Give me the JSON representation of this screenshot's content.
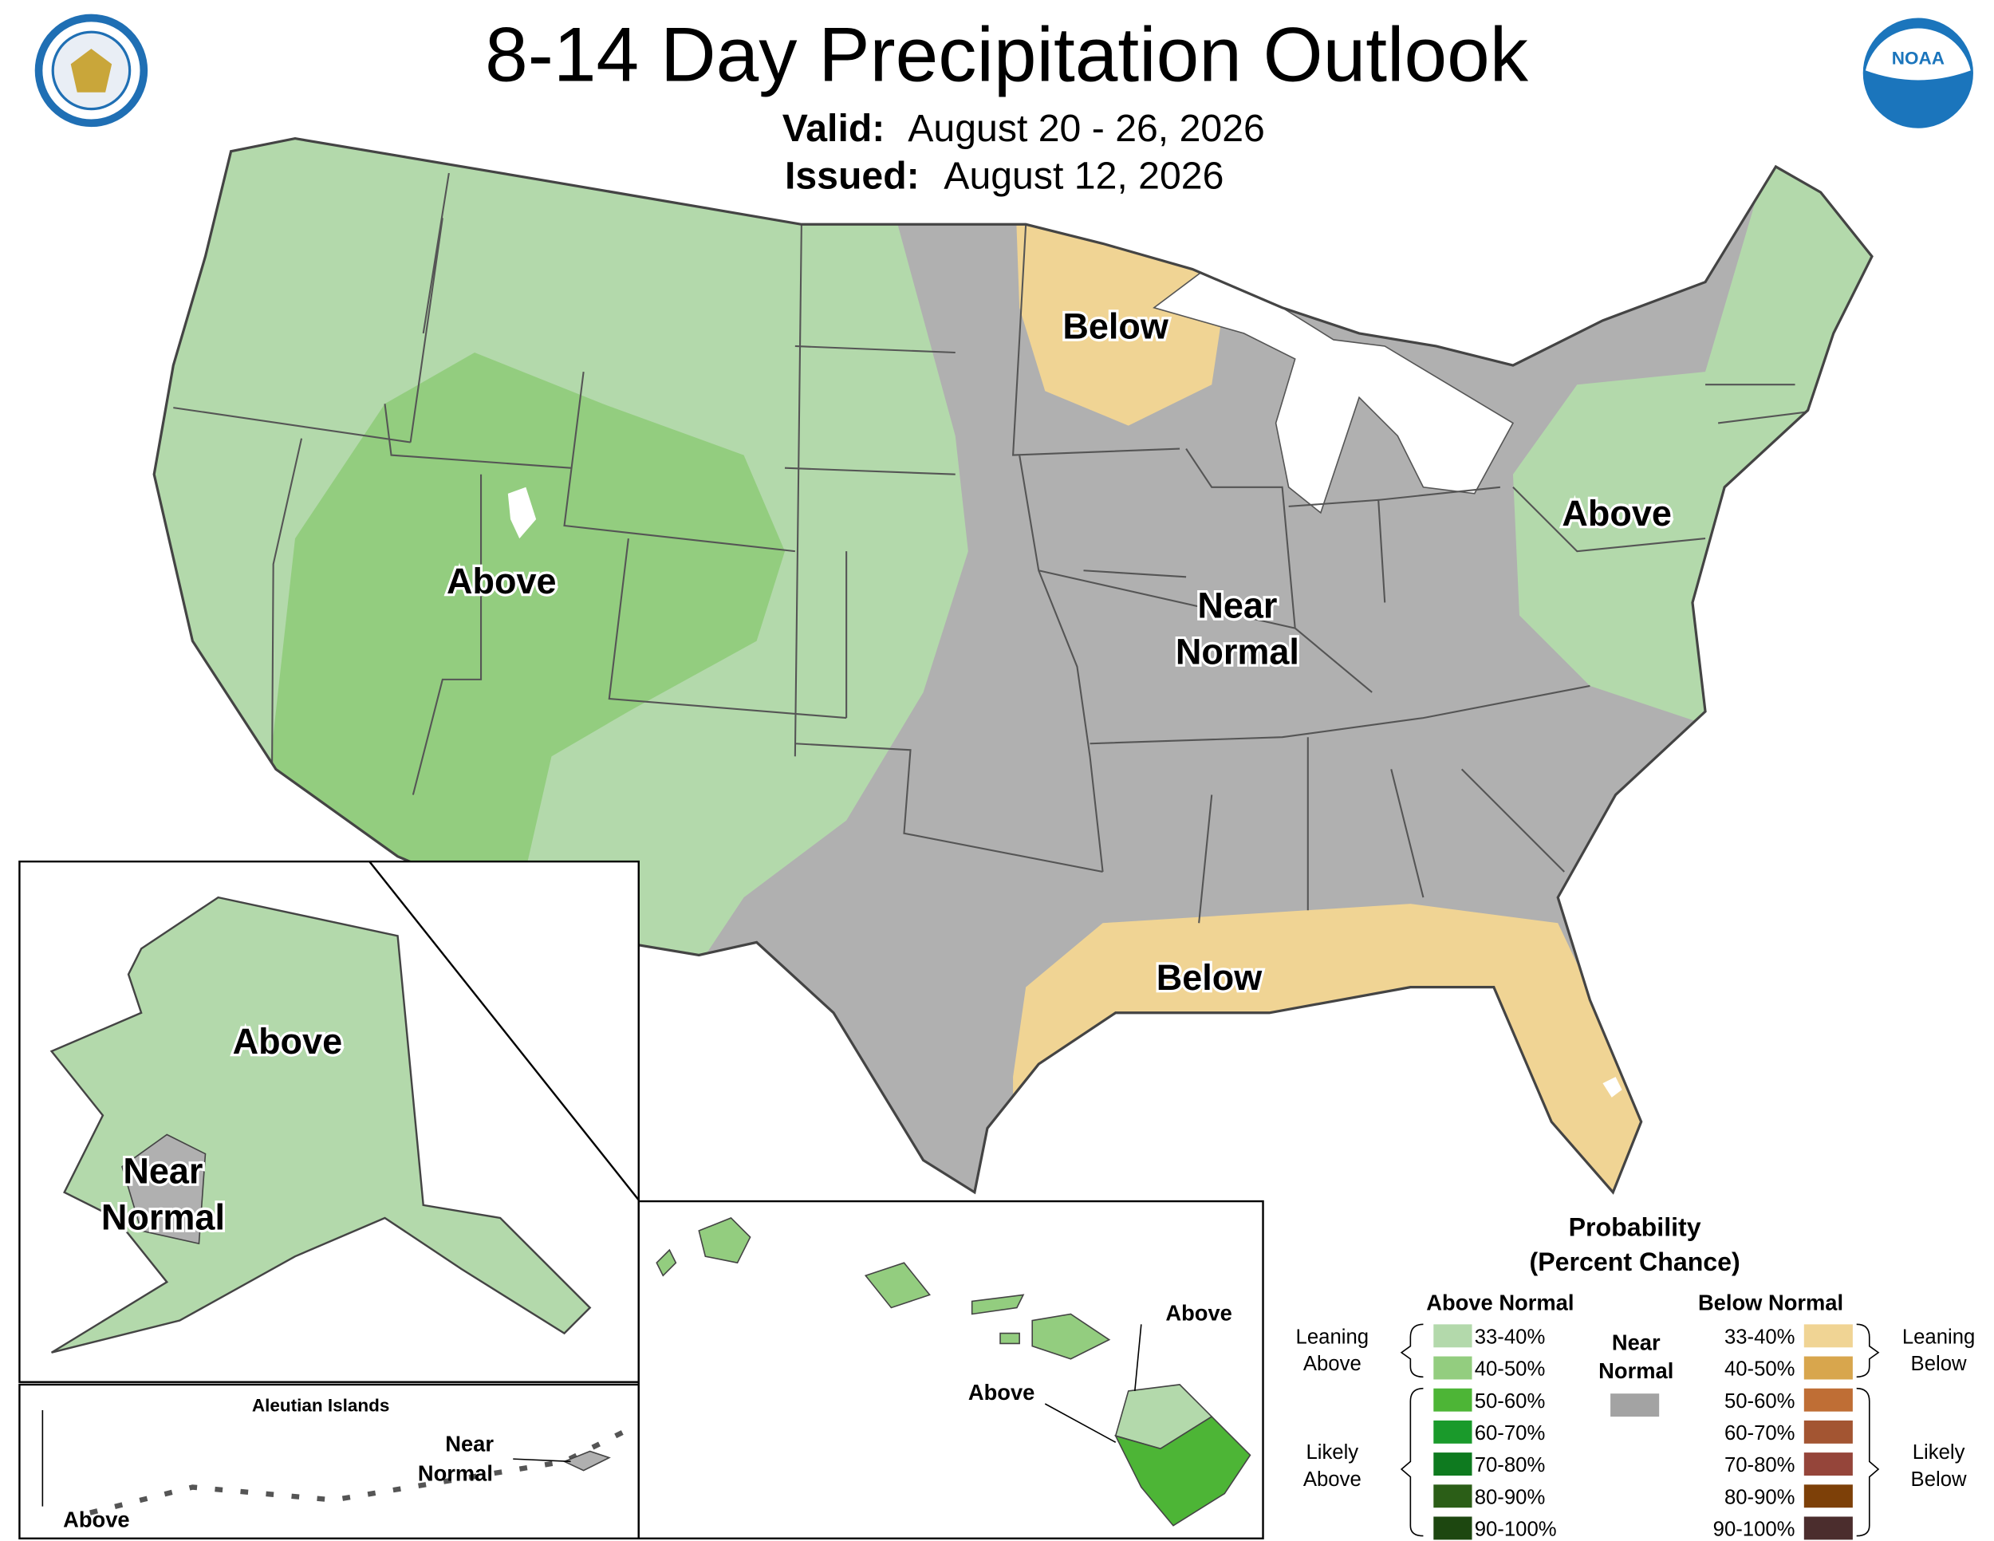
{
  "header": {
    "title": "8-14 Day Precipitation Outlook",
    "valid_label": "Valid:",
    "valid_dates": "August 20 - 26, 2026",
    "issued_label": "Issued:",
    "issued_date": "August 12, 2026"
  },
  "map_labels": {
    "conus": {
      "north_below": "Below",
      "west_above": "Above",
      "central_near": [
        "Near",
        "Normal"
      ],
      "east_above": "Above",
      "south_below": "Below"
    },
    "alaska": {
      "above": "Above",
      "near": [
        "Near",
        "Normal"
      ]
    },
    "aleutians": {
      "title": "Aleutian Islands",
      "near": [
        "Near",
        "Normal"
      ],
      "above": "Above"
    },
    "hawaii": {
      "above_north": "Above",
      "above_south": "Above"
    }
  },
  "legend": {
    "title": "Probability",
    "subtitle": "(Percent Chance)",
    "above_heading": "Above Normal",
    "below_heading": "Below Normal",
    "near_normal": [
      "Near",
      "Normal"
    ],
    "near_color": "#a3a3a3",
    "leaning_above": [
      "Leaning",
      "Above"
    ],
    "likely_above": [
      "Likely",
      "Above"
    ],
    "leaning_below": [
      "Leaning",
      "Below"
    ],
    "likely_below": [
      "Likely",
      "Below"
    ],
    "above": [
      {
        "range": "33-40%",
        "color": "#b3d9ab"
      },
      {
        "range": "40-50%",
        "color": "#93cd7f"
      },
      {
        "range": "50-60%",
        "color": "#4db536"
      },
      {
        "range": "60-70%",
        "color": "#1a9a2b"
      },
      {
        "range": "70-80%",
        "color": "#0e7a1f"
      },
      {
        "range": "80-90%",
        "color": "#2b5e17"
      },
      {
        "range": "90-100%",
        "color": "#1d4710"
      }
    ],
    "below": [
      {
        "range": "33-40%",
        "color": "#f0d494"
      },
      {
        "range": "40-50%",
        "color": "#d8a64d"
      },
      {
        "range": "50-60%",
        "color": "#bf6e35"
      },
      {
        "range": "60-70%",
        "color": "#a35532"
      },
      {
        "range": "70-80%",
        "color": "#95453a"
      },
      {
        "range": "80-90%",
        "color": "#7d4008"
      },
      {
        "range": "90-100%",
        "color": "#4b2d2d"
      }
    ]
  }
}
